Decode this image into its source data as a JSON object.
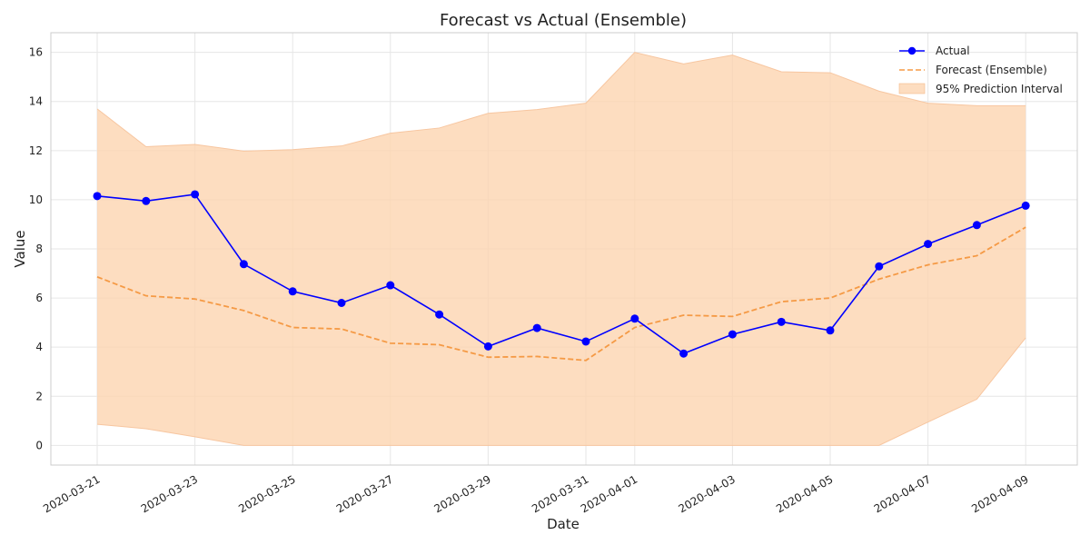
{
  "chart_data": {
    "type": "line",
    "title": "Forecast vs Actual (Ensemble)",
    "xlabel": "Date",
    "ylabel": "Value",
    "x": [
      "2020-03-21",
      "2020-03-22",
      "2020-03-23",
      "2020-03-24",
      "2020-03-25",
      "2020-03-26",
      "2020-03-27",
      "2020-03-28",
      "2020-03-29",
      "2020-03-30",
      "2020-03-31",
      "2020-04-01",
      "2020-04-02",
      "2020-04-03",
      "2020-04-04",
      "2020-04-05",
      "2020-04-06",
      "2020-04-07",
      "2020-04-08",
      "2020-04-09"
    ],
    "x_ticks": [
      "2020-03-21",
      "2020-03-23",
      "2020-03-25",
      "2020-03-27",
      "2020-03-29",
      "2020-03-31",
      "2020-04-01",
      "2020-04-03",
      "2020-04-05",
      "2020-04-07",
      "2020-04-09"
    ],
    "ylim": [
      -0.8,
      16.8
    ],
    "y_ticks": [
      0,
      2,
      4,
      6,
      8,
      10,
      12,
      14,
      16
    ],
    "grid": true,
    "legend_position": "top-right",
    "series": [
      {
        "name": "Actual",
        "style": "line-marker",
        "color": "#0000ff",
        "values": [
          10.15,
          9.95,
          10.22,
          7.38,
          6.27,
          5.8,
          6.52,
          5.33,
          4.03,
          4.78,
          4.23,
          5.16,
          3.74,
          4.52,
          5.03,
          4.68,
          7.29,
          8.2,
          8.97,
          9.76
        ]
      },
      {
        "name": "Forecast (Ensemble)",
        "style": "dashed",
        "color": "#f59a45",
        "values": [
          6.86,
          6.09,
          5.96,
          5.49,
          4.8,
          4.74,
          4.16,
          4.1,
          3.59,
          3.62,
          3.46,
          4.8,
          5.3,
          5.25,
          5.85,
          6.0,
          6.77,
          7.35,
          7.72,
          8.88
        ]
      }
    ],
    "interval": {
      "name": "95% Prediction Interval",
      "color": "#fdd4b0",
      "lower": [
        0.86,
        0.68,
        0.35,
        0.0,
        0.0,
        0.0,
        0.0,
        0.0,
        0.0,
        0.0,
        0.0,
        0.0,
        0.0,
        0.0,
        0.0,
        0.0,
        0.0,
        0.95,
        1.88,
        4.38
      ],
      "upper": [
        13.7,
        12.16,
        12.25,
        11.98,
        12.04,
        12.19,
        12.71,
        12.92,
        13.52,
        13.67,
        13.93,
        16.0,
        15.53,
        15.89,
        15.21,
        15.17,
        14.42,
        13.93,
        13.83,
        13.83
      ]
    }
  }
}
